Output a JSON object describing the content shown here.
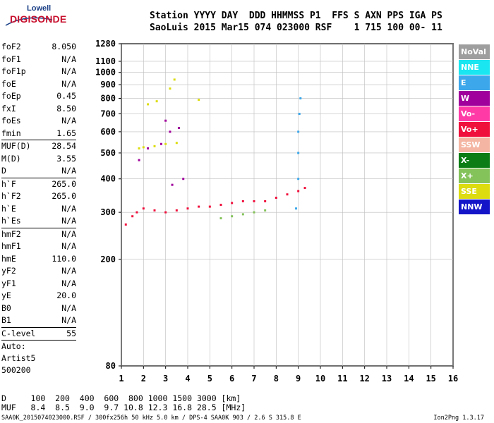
{
  "logo": {
    "line1": "Lowell",
    "line2": "DIGISONDE"
  },
  "header": {
    "line1": "Station YYYY DAY  DDD HHMMSS P1  FFS S AXN PPS IGA PS",
    "line2": "SaoLuis 2015 Mar15 074 023000 RSF    1 715 100 00- 11"
  },
  "params": [
    {
      "k": "foF2",
      "v": "8.050"
    },
    {
      "k": "foF1",
      "v": "N/A"
    },
    {
      "k": "foF1p",
      "v": "N/A"
    },
    {
      "k": "foE",
      "v": "N/A"
    },
    {
      "k": "foEp",
      "v": "0.45"
    },
    {
      "k": "fxI",
      "v": "8.50"
    },
    {
      "k": "foEs",
      "v": "N/A"
    },
    {
      "k": "fmin",
      "v": "1.65"
    },
    {
      "k": "MUF(D)",
      "v": "28.54"
    },
    {
      "k": "M(D)",
      "v": "3.55"
    },
    {
      "k": "D",
      "v": "N/A"
    },
    {
      "k": "h`F",
      "v": "265.0"
    },
    {
      "k": "h`F2",
      "v": "265.0"
    },
    {
      "k": "h`E",
      "v": "N/A"
    },
    {
      "k": "h`Es",
      "v": "N/A"
    },
    {
      "k": "hmF2",
      "v": "N/A"
    },
    {
      "k": "hmF1",
      "v": "N/A"
    },
    {
      "k": "hmE",
      "v": "110.0"
    },
    {
      "k": "yF2",
      "v": "N/A"
    },
    {
      "k": "yF1",
      "v": "N/A"
    },
    {
      "k": "yE",
      "v": "20.0"
    },
    {
      "k": "B0",
      "v": "N/A"
    },
    {
      "k": "B1",
      "v": "N/A"
    },
    {
      "k": "C-level",
      "v": "55"
    }
  ],
  "auto": {
    "l1": "Auto:",
    "l2": "Artist5",
    "l3": "500200"
  },
  "legend": [
    {
      "label": "NoVal",
      "color": "#9e9e9e"
    },
    {
      "label": "NNE",
      "color": "#19e6f0"
    },
    {
      "label": "E",
      "color": "#3ca7ea"
    },
    {
      "label": "W",
      "color": "#a0009b"
    },
    {
      "label": "Vo-",
      "color": "#ff3aa7"
    },
    {
      "label": "Vo+",
      "color": "#f0103c"
    },
    {
      "label": "SSW",
      "color": "#f4b6a2"
    },
    {
      "label": "X-",
      "color": "#0c7d14"
    },
    {
      "label": "X+",
      "color": "#84c25a"
    },
    {
      "label": "SSE",
      "color": "#dcdc10"
    },
    {
      "label": "NNW",
      "color": "#1414c8"
    }
  ],
  "footer": {
    "line1": "D     100  200  400  600  800 1000 1500 3000 [km]",
    "line2": "MUF   8.4  8.5  9.0  9.7 10.8 12.3 16.8 28.5 [MHz]",
    "bottom": "SAA0K_2015074023000.RSF / 300fx256h 50 kHz 5.0 km / DPS-4 SAA0K 903 / 2.6 S 315.8 E",
    "version": "Ion2Png 1.3.17"
  },
  "chart_data": {
    "type": "scatter",
    "title": "",
    "xlabel": "",
    "ylabel": "",
    "xlim": [
      1,
      16
    ],
    "ylim": [
      80,
      1280
    ],
    "y_scale": "log",
    "x_ticks": [
      1,
      2,
      3,
      4,
      5,
      6,
      7,
      8,
      9,
      10,
      11,
      12,
      13,
      14,
      15,
      16
    ],
    "y_ticks": [
      80,
      200,
      300,
      400,
      500,
      600,
      700,
      800,
      900,
      1000,
      1100,
      1280
    ],
    "grid": true,
    "series": [
      {
        "label": "Vo+",
        "color": "#f0103c",
        "points": [
          [
            1.2,
            270
          ],
          [
            1.5,
            290
          ],
          [
            1.7,
            300
          ],
          [
            2.0,
            310
          ],
          [
            2.5,
            305
          ],
          [
            3.0,
            300
          ],
          [
            3.5,
            305
          ],
          [
            4.0,
            310
          ],
          [
            4.5,
            315
          ],
          [
            5.0,
            315
          ],
          [
            5.5,
            320
          ],
          [
            6.0,
            325
          ],
          [
            6.5,
            330
          ],
          [
            7.0,
            330
          ],
          [
            7.5,
            330
          ],
          [
            8.0,
            340
          ],
          [
            8.5,
            350
          ],
          [
            9.0,
            360
          ],
          [
            9.3,
            370
          ]
        ]
      },
      {
        "label": "SSE",
        "color": "#dcdc10",
        "points": [
          [
            1.8,
            520
          ],
          [
            2.0,
            525
          ],
          [
            2.5,
            530
          ],
          [
            3.0,
            540
          ],
          [
            3.5,
            545
          ],
          [
            2.2,
            760
          ],
          [
            2.6,
            780
          ],
          [
            3.2,
            870
          ],
          [
            3.4,
            940
          ],
          [
            4.5,
            790
          ]
        ]
      },
      {
        "label": "W",
        "color": "#a0009b",
        "points": [
          [
            1.8,
            470
          ],
          [
            2.2,
            520
          ],
          [
            2.8,
            540
          ],
          [
            3.2,
            600
          ],
          [
            3.0,
            660
          ],
          [
            3.6,
            620
          ],
          [
            3.3,
            380
          ],
          [
            3.8,
            400
          ]
        ]
      },
      {
        "label": "X+",
        "color": "#84c25a",
        "points": [
          [
            5.5,
            285
          ],
          [
            6.0,
            290
          ],
          [
            6.5,
            295
          ],
          [
            7.0,
            300
          ],
          [
            7.5,
            305
          ]
        ]
      },
      {
        "label": "E",
        "color": "#3ca7ea",
        "points": [
          [
            8.9,
            310
          ],
          [
            9.0,
            400
          ],
          [
            9.0,
            500
          ],
          [
            9.0,
            600
          ],
          [
            9.05,
            700
          ],
          [
            9.1,
            800
          ]
        ]
      }
    ]
  }
}
